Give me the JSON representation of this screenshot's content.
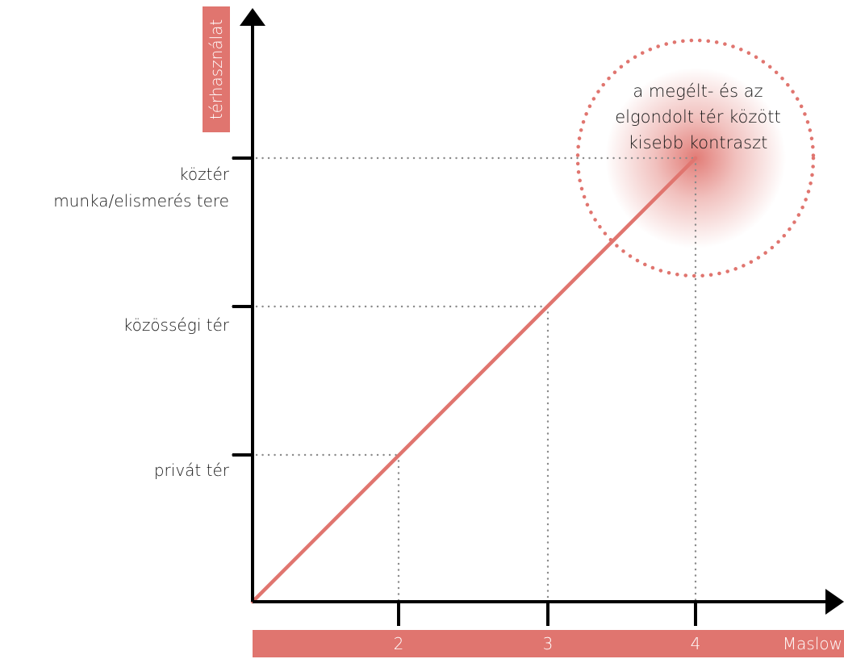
{
  "chart_data": {
    "type": "line",
    "axes": {
      "y_label": "térhasználat",
      "x_label": "Maslow"
    },
    "x_ticks": [
      "2",
      "3",
      "4"
    ],
    "y_ticks": [
      "privát tér",
      "közösségi tér",
      "köztér\nmunka/elismerés tere"
    ],
    "y_tick_lines": {
      "privat": "privát tér",
      "kozossegi": "közösségi tér",
      "kozter_1": "köztér",
      "kozter_2": "munka/elismerés tere"
    },
    "series": [
      {
        "x": [
          0,
          2,
          3,
          4
        ],
        "y": [
          0,
          1,
          2,
          3
        ]
      }
    ],
    "annotation": {
      "lines": [
        "a megélt- és az",
        "elgondolt tér között",
        "kisebb kontraszt"
      ],
      "target_point": {
        "x": 4,
        "y": 3
      }
    }
  },
  "colors": {
    "accent": "#e0756f",
    "axis": "#000000",
    "guide": "#8a8a8a",
    "text": "#1a1a1a",
    "band_text": "#ffffff"
  }
}
